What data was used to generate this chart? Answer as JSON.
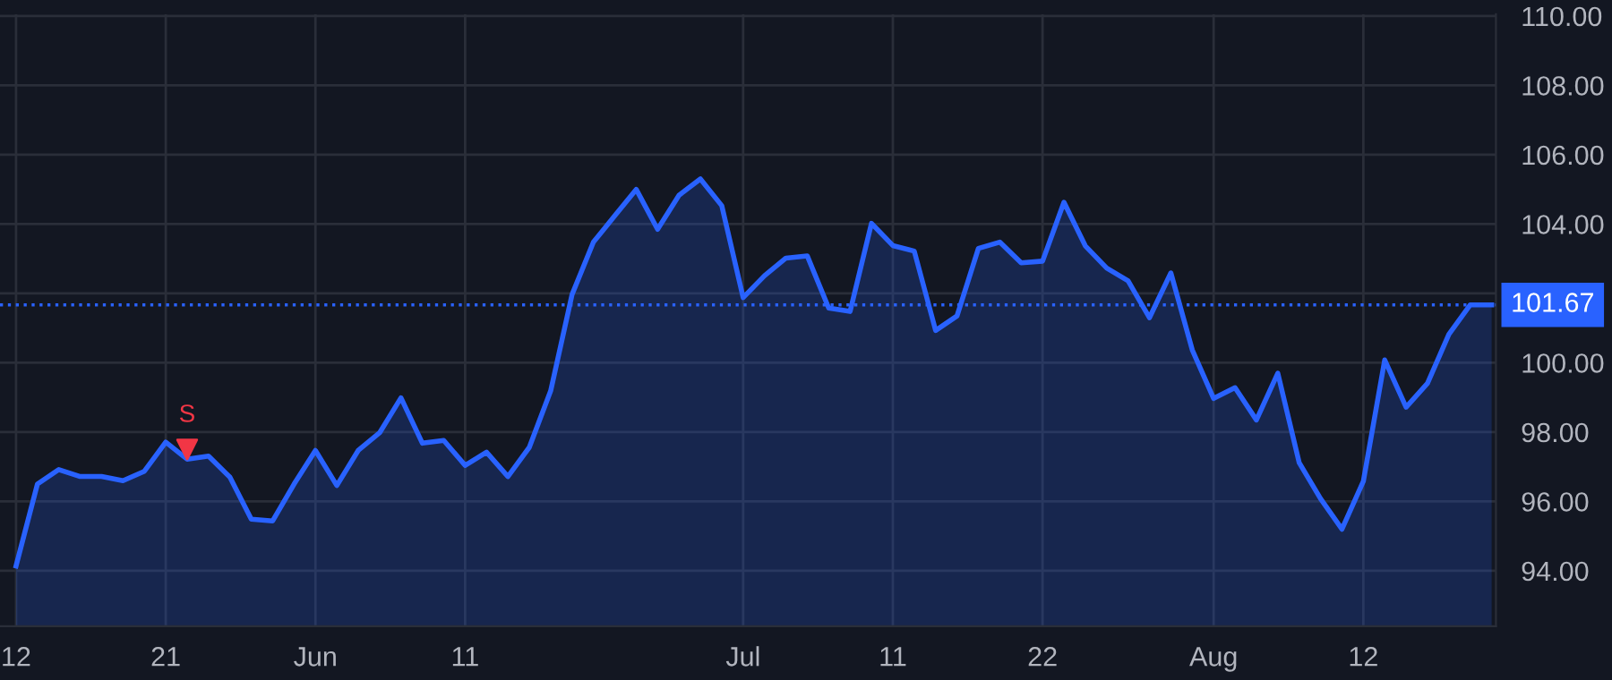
{
  "chart_data": {
    "type": "area",
    "categories": [
      "12",
      null,
      null,
      null,
      null,
      null,
      null,
      "21",
      null,
      null,
      null,
      null,
      null,
      null,
      "Jun",
      null,
      null,
      null,
      null,
      null,
      null,
      "11",
      null,
      null,
      null,
      null,
      null,
      null,
      null,
      null,
      null,
      null,
      null,
      null,
      "Jul",
      null,
      null,
      null,
      null,
      null,
      null,
      "11",
      null,
      null,
      null,
      null,
      null,
      null,
      "22",
      null,
      null,
      null,
      null,
      null,
      null,
      null,
      "Aug",
      null,
      null,
      null,
      null,
      null,
      null,
      "12",
      null,
      null,
      null,
      null,
      null,
      null
    ],
    "series": [
      {
        "color": "#2962ff",
        "values": [
          94.14,
          96.5,
          96.92,
          96.72,
          96.72,
          96.6,
          96.87,
          97.71,
          97.22,
          97.31,
          96.7,
          95.49,
          95.44,
          96.5,
          97.47,
          96.46,
          97.47,
          97.98,
          98.99,
          97.68,
          97.76,
          97.04,
          97.42,
          96.72,
          97.56,
          99.19,
          101.97,
          103.48,
          104.24,
          105.0,
          103.85,
          104.83,
          105.3,
          104.53,
          101.88,
          102.51,
          103.02,
          103.08,
          101.58,
          101.48,
          104.02,
          103.38,
          103.22,
          100.93,
          101.35,
          103.3,
          103.48,
          102.88,
          102.93,
          104.63,
          103.37,
          102.73,
          102.36,
          101.3,
          102.59,
          100.37,
          98.97,
          99.28,
          98.35,
          99.7,
          97.12,
          96.08,
          95.2,
          96.58,
          100.08,
          98.72,
          99.41,
          100.82,
          101.67,
          101.67
        ]
      },
      {
        "type": "scatter",
        "name": "S",
        "color": "#f23645",
        "marker": "triangle",
        "values": [
          null,
          null,
          null,
          null,
          null,
          null,
          null,
          null,
          97.5,
          null,
          null,
          null,
          null,
          null,
          null,
          null,
          null,
          null,
          null,
          null,
          null,
          null,
          null,
          null,
          null,
          null,
          null,
          null,
          null,
          null,
          null,
          null,
          null,
          null,
          null,
          null,
          null,
          null,
          null,
          null,
          null,
          null,
          null,
          null,
          null,
          null,
          null,
          null,
          null,
          null,
          null,
          null,
          null,
          null,
          null,
          null,
          null,
          null,
          null,
          null,
          null,
          null,
          null,
          null,
          null,
          null,
          null,
          null,
          null,
          null
        ]
      }
    ],
    "ylim": [
      92.4,
      110.05
    ],
    "yticks": [
      {
        "value": 94,
        "label": "94.00"
      },
      {
        "value": 96,
        "label": "96.00"
      },
      {
        "value": 98,
        "label": "98.00"
      },
      {
        "value": 100,
        "label": "100.00"
      },
      {
        "value": 102,
        "label": null
      },
      {
        "value": 104,
        "label": "104.00"
      },
      {
        "value": 106,
        "label": "106.00"
      },
      {
        "value": 108,
        "label": "108.00"
      },
      {
        "value": 110,
        "label": "110.00"
      }
    ],
    "grid": true,
    "ref_lines": [
      {
        "axis": "y",
        "value": 101.67,
        "label": "101.67",
        "color": "#2962ff",
        "line_style": "dotted"
      }
    ]
  }
}
